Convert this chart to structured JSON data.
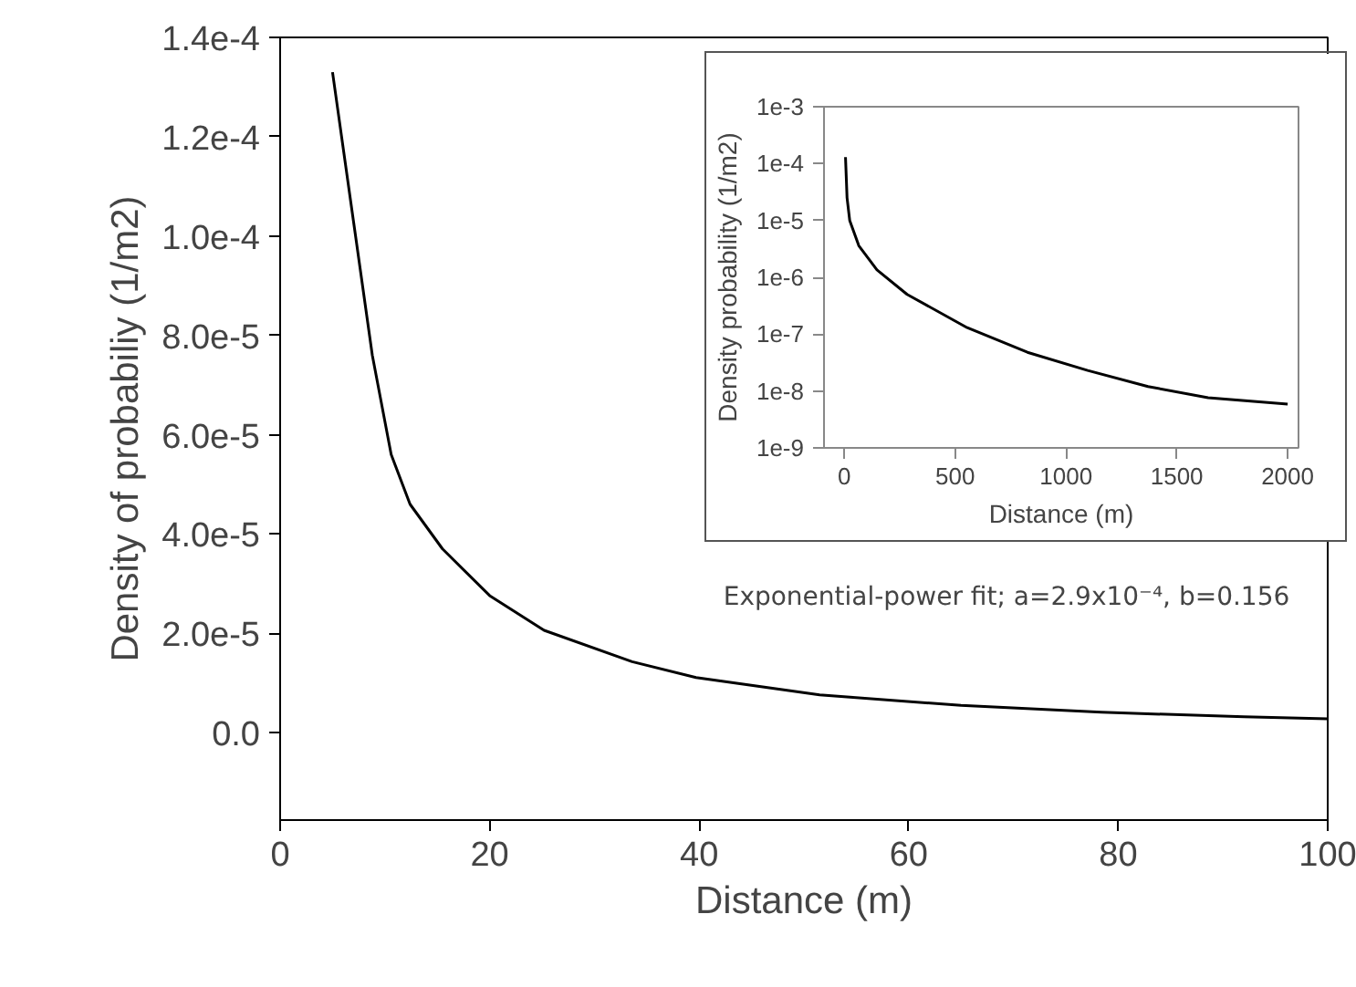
{
  "chart_data": [
    {
      "type": "line",
      "xlabel": "Distance (m)",
      "ylabel": "Density of probabiliy (1/m2)",
      "xlim": [
        0,
        100
      ],
      "ylim": [
        -1.76e-05,
        0.00014
      ],
      "xticks": [
        0,
        20,
        40,
        60,
        80,
        100
      ],
      "yticks": [
        {
          "value": 0,
          "label": "0.0"
        },
        {
          "value": 2e-05,
          "label": "2.0e-5"
        },
        {
          "value": 4e-05,
          "label": "4.0e-5"
        },
        {
          "value": 6e-05,
          "label": "6.0e-5"
        },
        {
          "value": 8e-05,
          "label": "8.0e-5"
        },
        {
          "value": 0.0001,
          "label": "1.0e-4"
        },
        {
          "value": 0.00012,
          "label": "1.2e-4"
        },
        {
          "value": 0.00014,
          "label": "1.4e-4"
        }
      ],
      "marker": "none",
      "line_style": "solid",
      "annotations": [
        "Exponential-power fit; a=2.9x10⁻⁴, b=0.156"
      ],
      "series": [
        {
          "color": "#000000",
          "x": [
            5,
            7,
            8.8,
            10.6,
            12.4,
            15.5,
            20,
            25.2,
            33.6,
            39.7,
            51.5,
            65,
            78.4,
            92,
            100
          ],
          "values": [
            0.000133,
            0.000103,
            7.6e-05,
            5.6e-05,
            4.6e-05,
            3.7e-05,
            2.76e-05,
            2.06e-05,
            1.43e-05,
            1.11e-05,
            7.6e-06,
            5.5e-06,
            4.1e-06,
            3.2e-06,
            2.8e-06
          ]
        }
      ]
    },
    {
      "type": "line",
      "xlabel": "Distance (m)",
      "ylabel": "Density probability (1/m2)",
      "log": "y",
      "xlim": [
        -92,
        2049
      ],
      "ylim": [
        1e-09,
        0.001
      ],
      "xticks": [
        0,
        500,
        1000,
        1500,
        2000
      ],
      "yticks": [
        {
          "value": 1e-09,
          "label": "1e-9"
        },
        {
          "value": 1e-08,
          "label": "1e-8"
        },
        {
          "value": 1e-07,
          "label": "1e-7"
        },
        {
          "value": 1e-06,
          "label": "1e-6"
        },
        {
          "value": 1e-05,
          "label": "1e-5"
        },
        {
          "value": 0.0001,
          "label": "1e-4"
        },
        {
          "value": 0.001,
          "label": "1e-3"
        }
      ],
      "marker": "none",
      "line_style": "solid",
      "series": [
        {
          "color": "#000000",
          "x": [
            5,
            12,
            24,
            65,
            147,
            283,
            554,
            826,
            1098,
            1370,
            1641,
            2000
          ],
          "values": [
            0.00013,
            2.5e-05,
            1e-05,
            3.6e-06,
            1.35e-06,
            5e-07,
            1.3e-07,
            4.8e-08,
            2.3e-08,
            1.2e-08,
            7.6e-09,
            5.9e-09
          ]
        }
      ]
    }
  ]
}
